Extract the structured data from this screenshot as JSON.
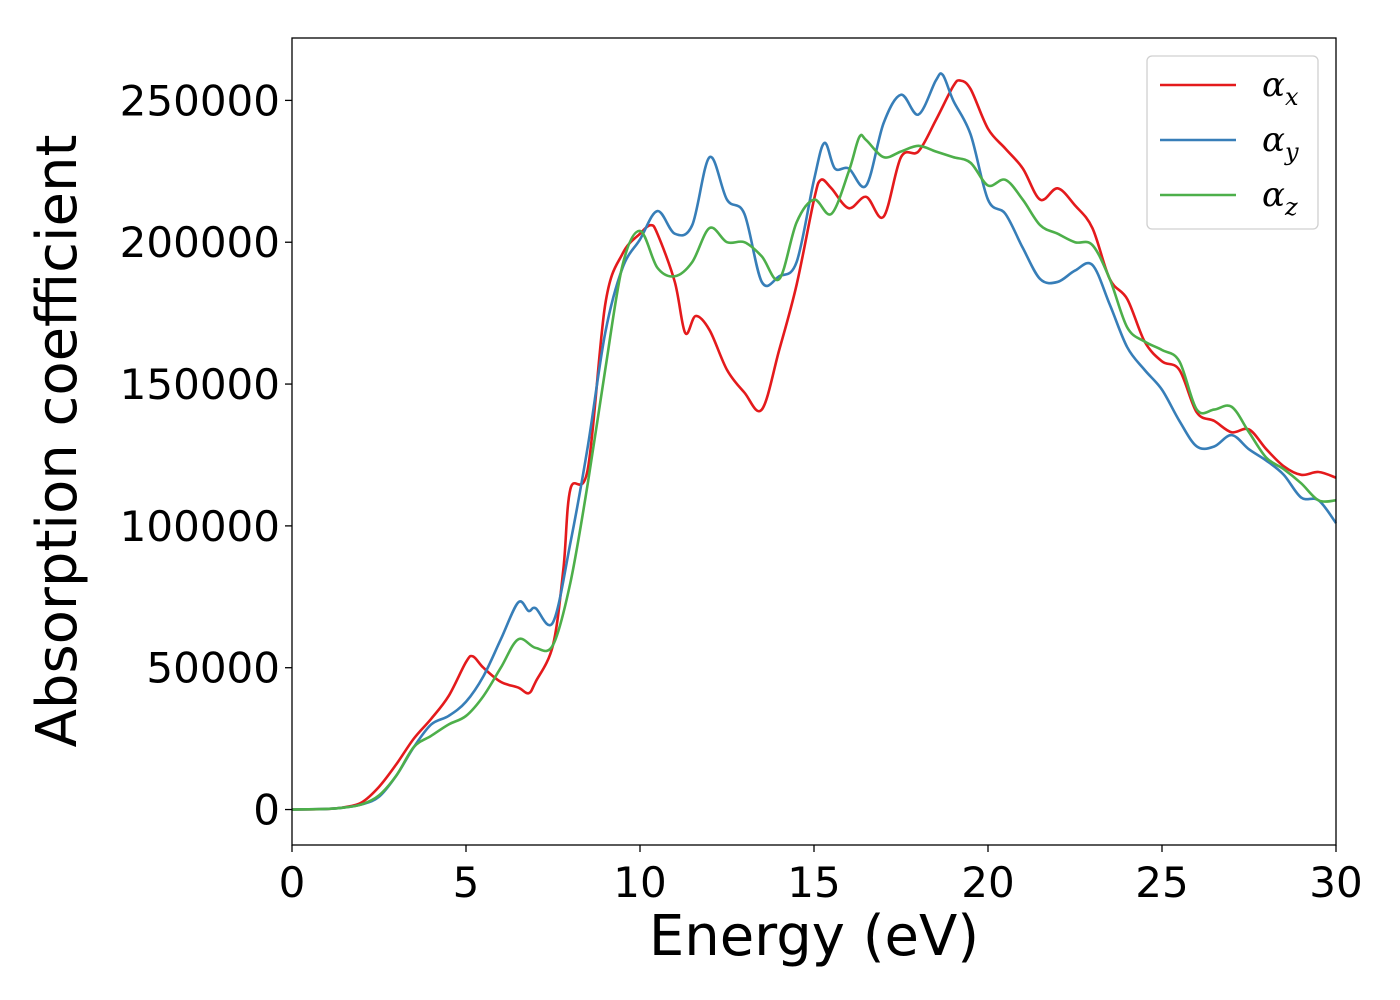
{
  "chart_data": {
    "type": "line",
    "title": "",
    "xlabel": "Energy (eV)",
    "ylabel": "Absorption coefficient",
    "xlim": [
      0,
      30
    ],
    "ylim": [
      -12500,
      272000
    ],
    "x_ticks": [
      0,
      5,
      10,
      15,
      20,
      25,
      30
    ],
    "x_tick_labels": [
      "0",
      "5",
      "10",
      "15",
      "20",
      "25",
      "30"
    ],
    "y_ticks": [
      0,
      50000,
      100000,
      150000,
      200000,
      250000
    ],
    "y_tick_labels": [
      "0",
      "50000",
      "100000",
      "150000",
      "200000",
      "250000"
    ],
    "grid": false,
    "legend_position": "top-right",
    "series": [
      {
        "name": "α",
        "subscript": "x",
        "color": "#e41a1c",
        "x": [
          0,
          1,
          1.5,
          2,
          2.5,
          3,
          3.5,
          4,
          4.5,
          5,
          5.2,
          5.5,
          6,
          6.5,
          6.8,
          7,
          7.5,
          7.8,
          8,
          8.5,
          9,
          9.5,
          10,
          10.3,
          10.5,
          11,
          11.3,
          11.6,
          12,
          12.5,
          13,
          13.5,
          14,
          14.5,
          15,
          15.2,
          15.5,
          16,
          16.5,
          17,
          17.5,
          18,
          18.5,
          19,
          19.2,
          19.5,
          20,
          20.5,
          21,
          21.5,
          22,
          22.5,
          23,
          23.5,
          24,
          24.5,
          25,
          25.5,
          26,
          26.5,
          27,
          27.5,
          28,
          28.5,
          29,
          29.5,
          30
        ],
        "y": [
          0,
          200,
          800,
          2500,
          8000,
          16000,
          25000,
          32000,
          40000,
          52000,
          54000,
          50000,
          45000,
          43000,
          41000,
          45000,
          58000,
          85000,
          113000,
          120000,
          178000,
          196000,
          203000,
          206000,
          203000,
          186000,
          168000,
          174000,
          169000,
          155000,
          147000,
          141000,
          162000,
          185000,
          215000,
          222000,
          219000,
          212000,
          216000,
          209000,
          230000,
          232000,
          243000,
          255000,
          257000,
          254000,
          240000,
          233000,
          226000,
          215000,
          219000,
          213000,
          205000,
          187000,
          180000,
          165000,
          158000,
          155000,
          140000,
          137000,
          133000,
          134000,
          127000,
          121000,
          118000,
          119000,
          117000
        ]
      },
      {
        "name": "α",
        "subscript": "y",
        "color": "#377eb8",
        "x": [
          0,
          1,
          1.5,
          2,
          2.5,
          3,
          3.5,
          4,
          4.5,
          5,
          5.5,
          6,
          6.5,
          6.8,
          7,
          7.5,
          8,
          8.5,
          9,
          9.5,
          10,
          10.5,
          11,
          11.5,
          12,
          12.5,
          13,
          13.5,
          14,
          14.5,
          15,
          15.3,
          15.6,
          16,
          16.5,
          17,
          17.5,
          18,
          18.5,
          18.7,
          19,
          19.5,
          20,
          20.5,
          21,
          21.5,
          22,
          22.5,
          23,
          23.5,
          24,
          24.5,
          25,
          25.5,
          26,
          26.5,
          27,
          27.5,
          28,
          28.5,
          29,
          29.5,
          30
        ],
        "y": [
          0,
          200,
          700,
          1800,
          4500,
          12000,
          22000,
          30000,
          33000,
          38000,
          47000,
          60000,
          73000,
          70000,
          71000,
          66000,
          94000,
          128000,
          168000,
          191000,
          201000,
          211000,
          203000,
          206000,
          230000,
          215000,
          210000,
          186000,
          188000,
          193000,
          222000,
          235000,
          226000,
          226000,
          220000,
          242000,
          252000,
          245000,
          257000,
          259000,
          250000,
          238000,
          215000,
          210000,
          198000,
          187000,
          186000,
          190000,
          192000,
          178000,
          163000,
          155000,
          148000,
          137000,
          128000,
          128000,
          132000,
          127000,
          123000,
          118000,
          110000,
          109000,
          101000
        ]
      },
      {
        "name": "α",
        "subscript": "z",
        "color": "#4daf4a",
        "x": [
          0,
          1,
          1.5,
          2,
          2.5,
          3,
          3.5,
          4,
          4.5,
          5,
          5.5,
          6,
          6.5,
          7,
          7.5,
          8,
          8.5,
          9,
          9.5,
          10,
          10.5,
          11,
          11.5,
          12,
          12.5,
          13,
          13.5,
          14,
          14.5,
          15,
          15.5,
          16,
          16.3,
          16.5,
          17,
          17.5,
          18,
          18.5,
          19,
          19.5,
          20,
          20.5,
          21,
          21.5,
          22,
          22.5,
          23,
          23.5,
          24,
          24.5,
          25,
          25.5,
          26,
          26.5,
          27,
          27.5,
          28,
          28.5,
          29,
          29.5,
          30
        ],
        "y": [
          0,
          200,
          700,
          1800,
          5000,
          12000,
          22000,
          26000,
          30000,
          33000,
          40000,
          50000,
          60000,
          57000,
          58000,
          80000,
          115000,
          155000,
          192000,
          204000,
          191000,
          188000,
          193000,
          205000,
          200000,
          200000,
          195000,
          187000,
          207000,
          215000,
          210000,
          225000,
          237000,
          236000,
          230000,
          232000,
          234000,
          232000,
          230000,
          228000,
          220000,
          222000,
          215000,
          206000,
          203000,
          200000,
          199000,
          187000,
          170000,
          165000,
          162000,
          158000,
          141000,
          141000,
          142000,
          133000,
          124000,
          120000,
          115000,
          109000,
          109000
        ]
      }
    ]
  }
}
